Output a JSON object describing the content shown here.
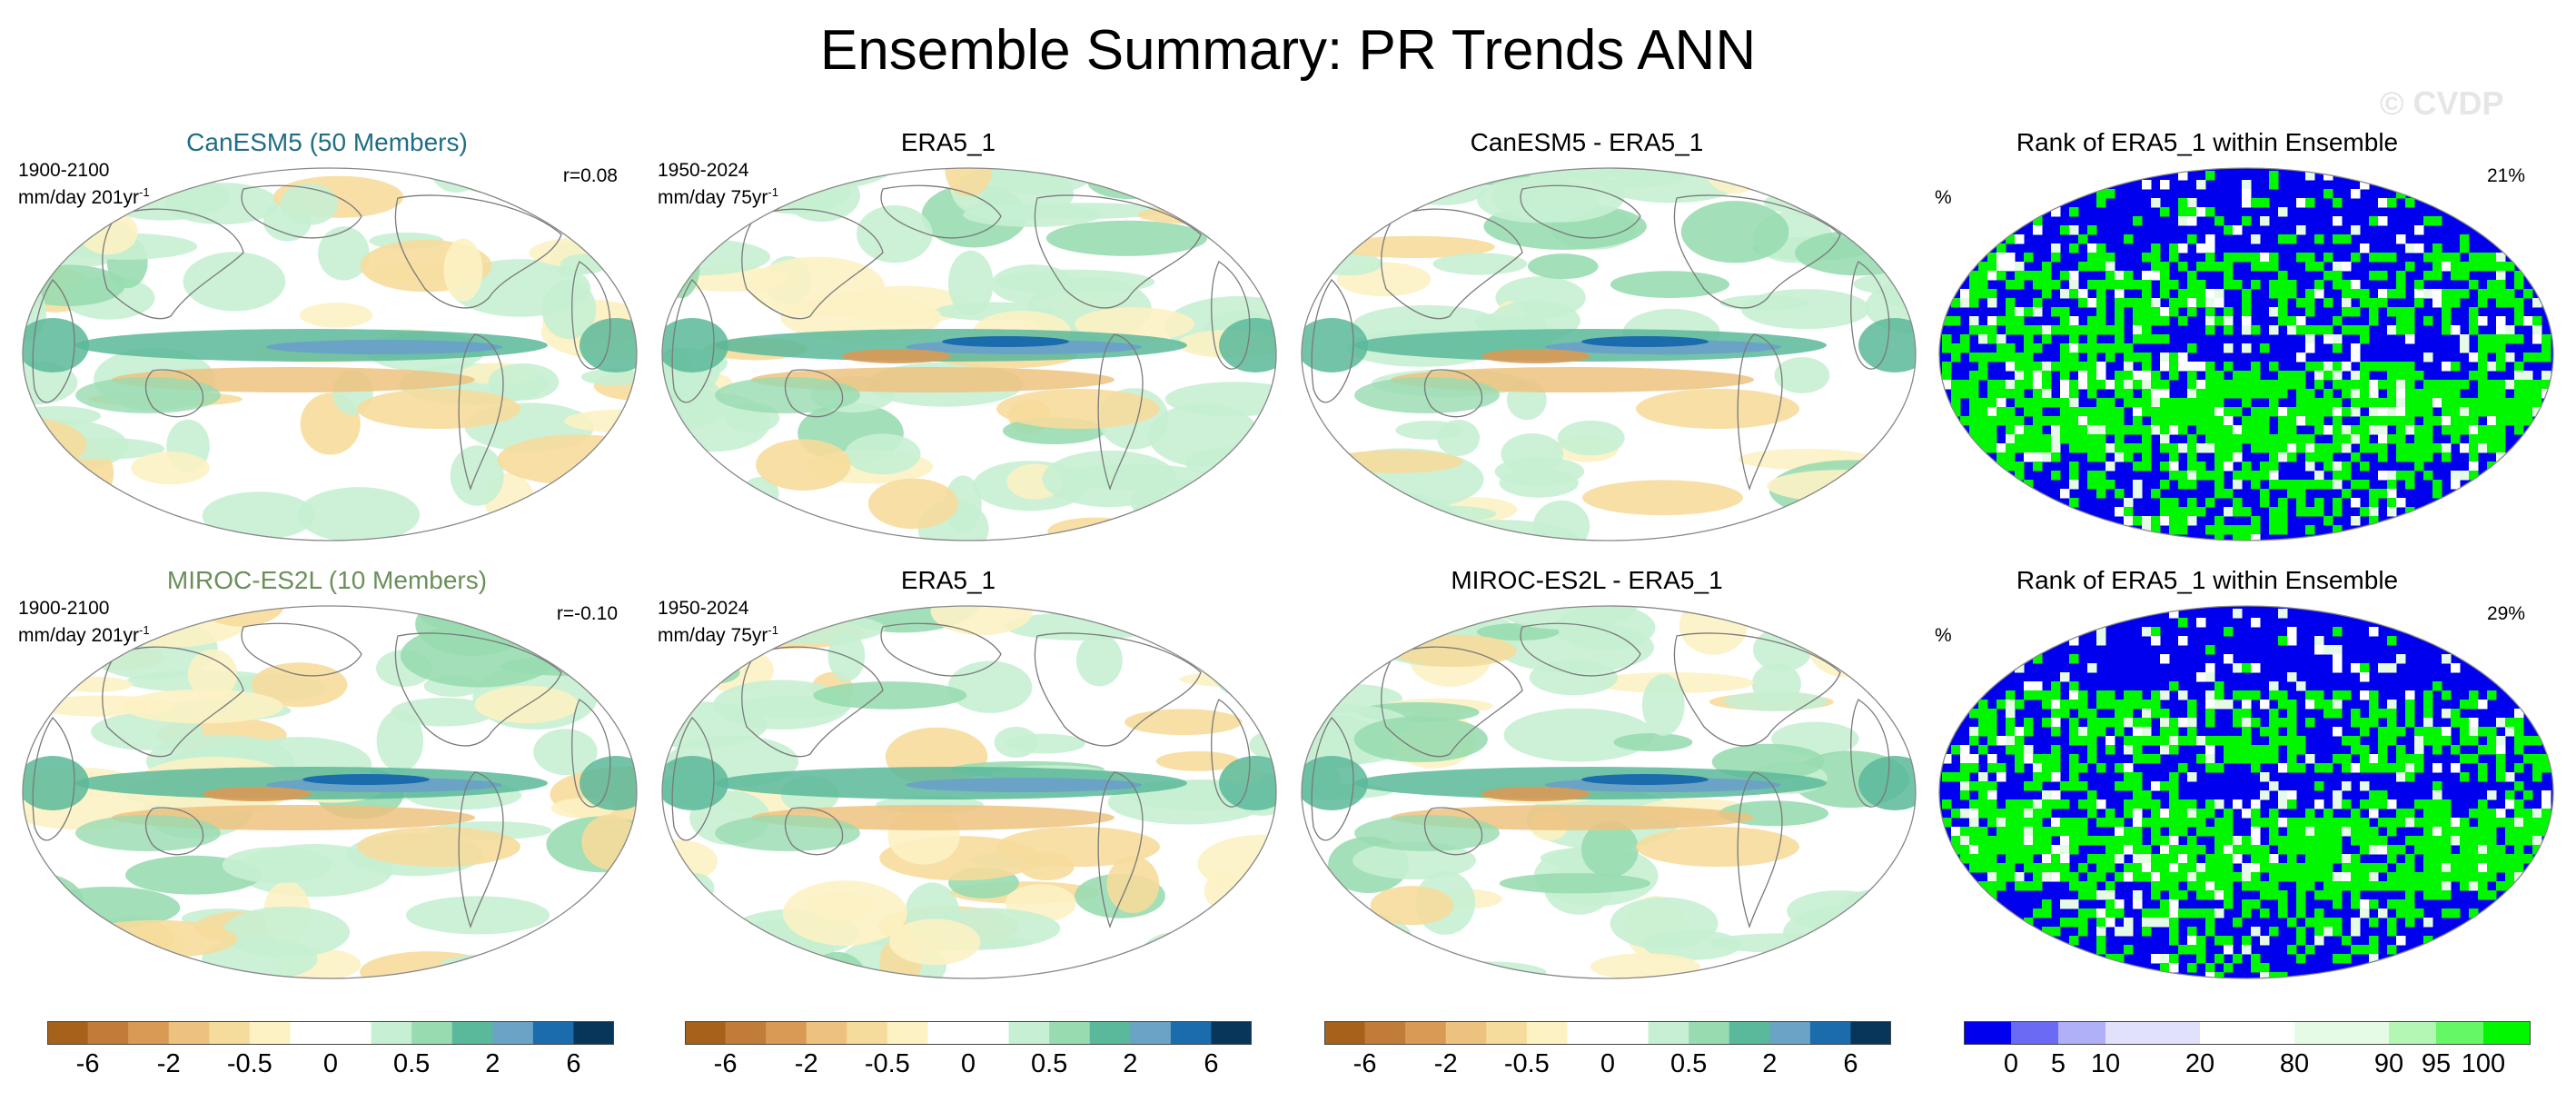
{
  "title": "Ensemble Summary: PR Trends ANN",
  "watermark": "© CVDP",
  "colors": {
    "ocean_bg": "#ffffff",
    "coast": "#7a7a7a",
    "border": "#888888"
  },
  "rows": [
    {
      "panels": [
        {
          "kind": "trend",
          "title": "CanESM5 (50 Members)",
          "title_color": "#1f6e86",
          "period": "1900-2100",
          "units": "mm/day 201yr",
          "units_sup": "-1",
          "stat": "r=0.08"
        },
        {
          "kind": "trend",
          "title": "ERA5_1",
          "title_color": "#000000",
          "period": "1950-2024",
          "units": "mm/day 75yr",
          "units_sup": "-1",
          "stat": ""
        },
        {
          "kind": "trend",
          "title": "CanESM5 - ERA5_1",
          "title_color": "#000000",
          "period": "",
          "units": "",
          "units_sup": "",
          "stat": ""
        },
        {
          "kind": "rank",
          "title": "Rank of ERA5_1 within Ensemble",
          "title_color": "#000000",
          "period": "",
          "units": "%",
          "units_sup": "",
          "stat": "21%"
        }
      ]
    },
    {
      "panels": [
        {
          "kind": "trend",
          "title": "MIROC-ES2L (10 Members)",
          "title_color": "#6b8f5a",
          "period": "1900-2100",
          "units": "mm/day 201yr",
          "units_sup": "-1",
          "stat": "r=-0.10"
        },
        {
          "kind": "trend",
          "title": "ERA5_1",
          "title_color": "#000000",
          "period": "1950-2024",
          "units": "mm/day 75yr",
          "units_sup": "-1",
          "stat": ""
        },
        {
          "kind": "trend",
          "title": "MIROC-ES2L - ERA5_1",
          "title_color": "#000000",
          "period": "",
          "units": "",
          "units_sup": "",
          "stat": ""
        },
        {
          "kind": "rank",
          "title": "Rank of ERA5_1 within Ensemble",
          "title_color": "#000000",
          "period": "",
          "units": "%",
          "units_sup": "",
          "stat": "29%"
        }
      ]
    }
  ],
  "chart_data": {
    "type": "heatmap",
    "title": "Ensemble Summary: PR Trends ANN",
    "trend_colorbar": {
      "colors": [
        "#a6611a",
        "#c27c3a",
        "#d99a56",
        "#edc27f",
        "#f6dc9c",
        "#fcf2c4",
        "#ffffff",
        "#ffffff",
        "#c7efd3",
        "#99dbb0",
        "#5ab99a",
        "#6aa3c5",
        "#1a6cad",
        "#08365a"
      ],
      "tick_labels": [
        "-6",
        "-2",
        "-0.5",
        "0",
        "0.5",
        "2",
        "6"
      ],
      "tick_positions": [
        1,
        3,
        5,
        7,
        9,
        11,
        13
      ]
    },
    "rank_colorbar": {
      "colors": [
        "#0000ee",
        "#6a6af4",
        "#b0b0f8",
        "#e1e1fb",
        "#e1e1fb",
        "#ffffff",
        "#ffffff",
        "#e6fbe6",
        "#e6fbe6",
        "#b4f7b4",
        "#66f766",
        "#00f700"
      ],
      "tick_labels": [
        "0",
        "5",
        "10",
        "20",
        "80",
        "90",
        "95",
        "100"
      ],
      "tick_positions": [
        1,
        2,
        3,
        5,
        7,
        9,
        10,
        11
      ]
    },
    "rank_percent_above_threshold": [
      21,
      29
    ]
  }
}
